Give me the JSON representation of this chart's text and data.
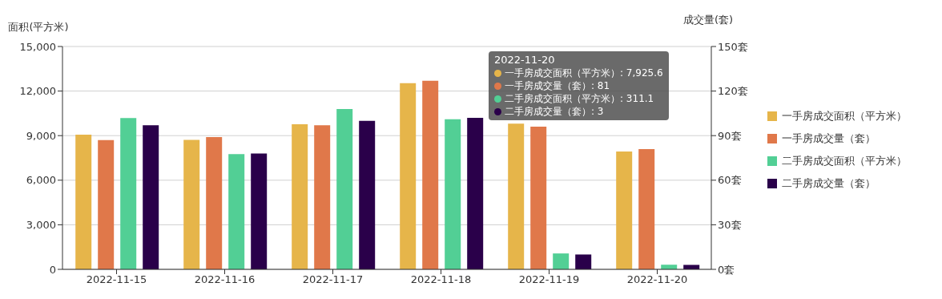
{
  "chart_data": {
    "type": "bar",
    "ylabel": "面积(平方米)",
    "y2label": "成交量(套)",
    "categories": [
      "2022-11-15",
      "2022-11-16",
      "2022-11-17",
      "2022-11-18",
      "2022-11-19",
      "2022-11-20"
    ],
    "series": [
      {
        "name": "一手房成交面积（平方米）",
        "color": "#e6b54a",
        "values": [
          9070,
          8720,
          9770,
          12530,
          9810,
          7925.6
        ]
      },
      {
        "name": "一手房成交量（套）",
        "color": "#e0784a",
        "axis": "y2",
        "values": [
          87,
          89,
          97,
          127,
          96,
          81
        ]
      },
      {
        "name": "二手房成交面积（平方米）",
        "color": "#52cf95",
        "values": [
          10190,
          7750,
          10790,
          10100,
          1070,
          311.1
        ]
      },
      {
        "name": "二手房成交量（套）",
        "color": "#2a004a",
        "axis": "y2",
        "values": [
          97,
          78,
          100,
          102,
          10,
          3
        ]
      }
    ],
    "ylim": [
      0,
      15000
    ],
    "yticks": [
      0,
      {
        "value": 3000,
        "label": "3,000"
      },
      {
        "value": 6000,
        "label": "6,000"
      },
      {
        "value": 9000,
        "label": "9,000"
      },
      {
        "value": 12000,
        "label": "12,000"
      },
      {
        "value": 15000,
        "label": "15,000"
      }
    ],
    "y2lim": [
      0,
      150
    ],
    "y2ticks": [
      {
        "value": 0,
        "label": "0套"
      },
      {
        "value": 30,
        "label": "30套"
      },
      {
        "value": 60,
        "label": "60套"
      },
      {
        "value": 90,
        "label": "90套"
      },
      {
        "value": 120,
        "label": "120套"
      },
      {
        "value": 150,
        "label": "150套"
      }
    ],
    "grid": "y",
    "legend": "right",
    "annotations": [
      "2022-11-20",
      "一手房成交面积（平方米）: 7,925.6",
      "一手房成交量（套）: 81",
      "二手房成交面积（平方米）: 311.1",
      "二手房成交量（套）: 3"
    ]
  }
}
